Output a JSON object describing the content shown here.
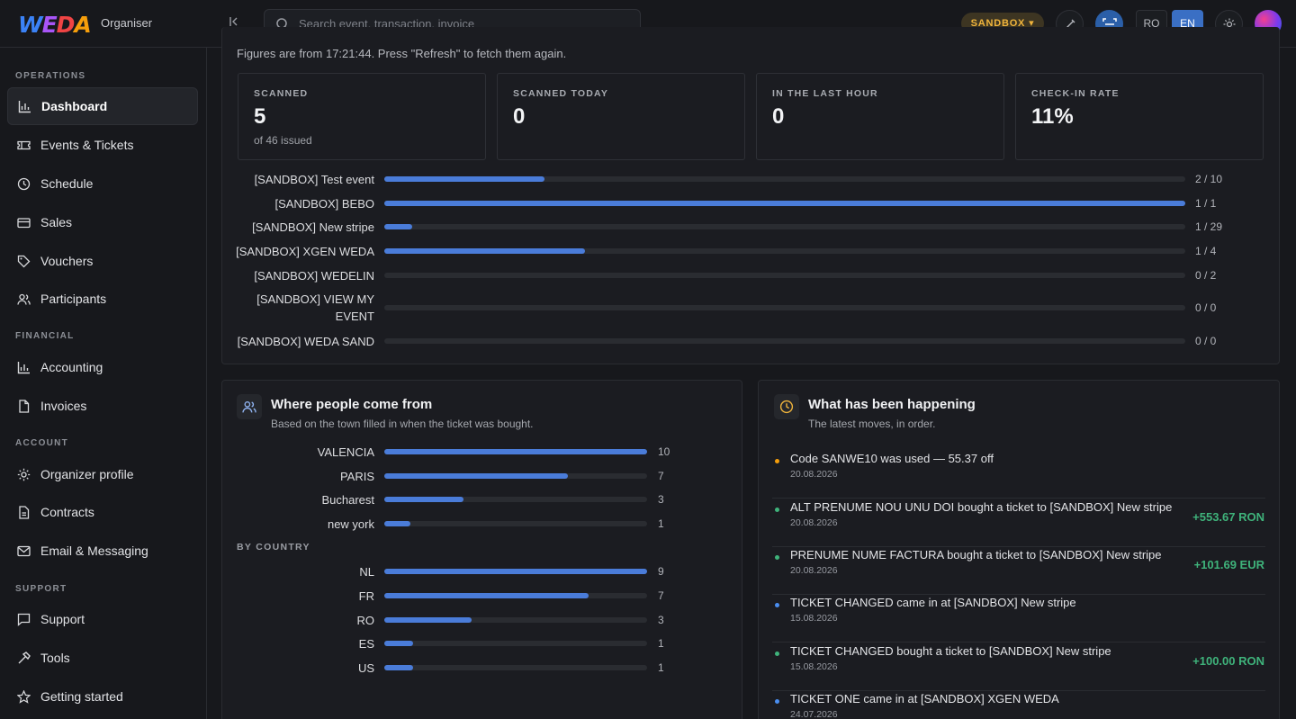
{
  "app": {
    "logo": [
      "W",
      "E",
      "D",
      "A"
    ],
    "org_label": "Organiser",
    "search_placeholder": "Search event, transaction, invoice",
    "env_badge": "SANDBOX",
    "lang_ro": "RO",
    "lang_en": "EN"
  },
  "sidebar": {
    "sections": {
      "operations": "OPERATIONS",
      "financial": "FINANCIAL",
      "account": "ACCOUNT",
      "support": "SUPPORT"
    },
    "items": [
      {
        "label": "Dashboard",
        "icon": "bar-chart-icon",
        "active": true
      },
      {
        "label": "Events & Tickets",
        "icon": "ticket-icon"
      },
      {
        "label": "Schedule",
        "icon": "clock-icon"
      },
      {
        "label": "Sales",
        "icon": "credit-card-icon"
      },
      {
        "label": "Vouchers",
        "icon": "tag-icon"
      },
      {
        "label": "Participants",
        "icon": "users-icon"
      },
      {
        "label": "Accounting",
        "icon": "bar-chart-icon"
      },
      {
        "label": "Invoices",
        "icon": "file-icon"
      },
      {
        "label": "Organizer profile",
        "icon": "sun-icon"
      },
      {
        "label": "Contracts",
        "icon": "document-icon"
      },
      {
        "label": "Email & Messaging",
        "icon": "mail-icon"
      },
      {
        "label": "Support",
        "icon": "chat-icon"
      },
      {
        "label": "Tools",
        "icon": "hammer-icon"
      },
      {
        "label": "Getting started",
        "icon": "star-icon"
      }
    ]
  },
  "checkin": {
    "note": "Figures are from 17:21:44. Press \"Refresh\" to fetch them again.",
    "stats": [
      {
        "label": "SCANNED",
        "value": "5",
        "sub": "of 46 issued"
      },
      {
        "label": "SCANNED TODAY",
        "value": "0",
        "sub": ""
      },
      {
        "label": "IN THE LAST HOUR",
        "value": "0",
        "sub": ""
      },
      {
        "label": "CHECK-IN RATE",
        "value": "11%",
        "sub": ""
      }
    ],
    "events": [
      {
        "name": "[SANDBOX] Test event",
        "count": "2 / 10",
        "fraction": 0.2
      },
      {
        "name": "[SANDBOX] BEBO",
        "count": "1 / 1",
        "fraction": 1.0
      },
      {
        "name": "[SANDBOX] New stripe",
        "count": "1 / 29",
        "fraction": 0.0345
      },
      {
        "name": "[SANDBOX] XGEN WEDA",
        "count": "1 / 4",
        "fraction": 0.25
      },
      {
        "name": "[SANDBOX] WEDELIN",
        "count": "0 / 2",
        "fraction": 0
      },
      {
        "name": "[SANDBOX] VIEW MY EVENT",
        "count": "0 / 0",
        "fraction": 0
      },
      {
        "name": "[SANDBOX] WEDA SAND",
        "count": "0 / 0",
        "fraction": 0
      }
    ]
  },
  "origin": {
    "title": "Where people come from",
    "subtitle": "Based on the town filled in when the ticket was bought.",
    "by_country_label": "BY COUNTRY",
    "towns": [
      {
        "name": "VALENCIA",
        "value": 10
      },
      {
        "name": "PARIS",
        "value": 7
      },
      {
        "name": "Bucharest",
        "value": 3
      },
      {
        "name": "new york",
        "value": 1
      }
    ],
    "countries": [
      {
        "name": "NL",
        "value": 9
      },
      {
        "name": "FR",
        "value": 7
      },
      {
        "name": "RO",
        "value": 3
      },
      {
        "name": "ES",
        "value": 1
      },
      {
        "name": "US",
        "value": 1
      }
    ]
  },
  "activity": {
    "title": "What has been happening",
    "subtitle": "The latest moves, in order.",
    "items": [
      {
        "text": "Code SANWE10 was used — 55.37 off",
        "date": "20.08.2026",
        "amount": "",
        "dot": "#f59e0b"
      },
      {
        "text": "ALT PRENUME NOU UNU DOI bought a ticket to [SANDBOX] New stripe",
        "date": "20.08.2026",
        "amount": "+553.67 RON",
        "dot": "#3fb37b"
      },
      {
        "text": "PRENUME NUME FACTURA bought a ticket to [SANDBOX] New stripe",
        "date": "20.08.2026",
        "amount": "+101.69 EUR",
        "dot": "#3fb37b"
      },
      {
        "text": "TICKET CHANGED came in at [SANDBOX] New stripe",
        "date": "15.08.2026",
        "amount": "",
        "dot": "#4a8ef0"
      },
      {
        "text": "TICKET CHANGED bought a ticket to [SANDBOX] New stripe",
        "date": "15.08.2026",
        "amount": "+100.00 RON",
        "dot": "#3fb37b"
      },
      {
        "text": "TICKET ONE came in at [SANDBOX] XGEN WEDA",
        "date": "24.07.2026",
        "amount": "",
        "dot": "#4a8ef0"
      }
    ]
  }
}
